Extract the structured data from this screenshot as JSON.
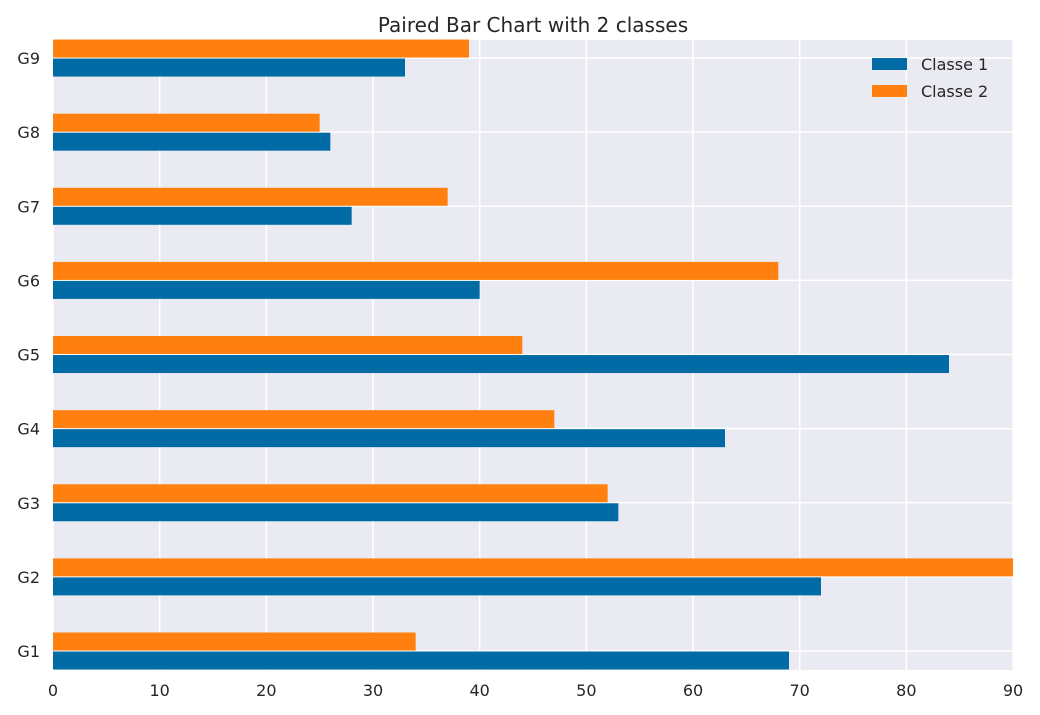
{
  "chart_data": {
    "type": "bar",
    "orientation": "horizontal",
    "title": "Paired Bar Chart with 2 classes",
    "xlabel": "",
    "ylabel": "",
    "categories": [
      "G1",
      "G2",
      "G3",
      "G4",
      "G5",
      "G6",
      "G7",
      "G8",
      "G9"
    ],
    "series": [
      {
        "name": "Classe 1",
        "color": "#006BA4",
        "values": [
          69,
          72,
          53,
          63,
          84,
          40,
          28,
          26,
          33
        ]
      },
      {
        "name": "Classe 2",
        "color": "#FF800E",
        "values": [
          34,
          90,
          52,
          47,
          44,
          68,
          37,
          25,
          39
        ]
      }
    ],
    "xlim": [
      0,
      90
    ],
    "xticks": [
      0,
      10,
      20,
      30,
      40,
      50,
      60,
      70,
      80,
      90
    ],
    "grid": true,
    "legend_position": "top-right",
    "background": "#EAEAF2"
  }
}
